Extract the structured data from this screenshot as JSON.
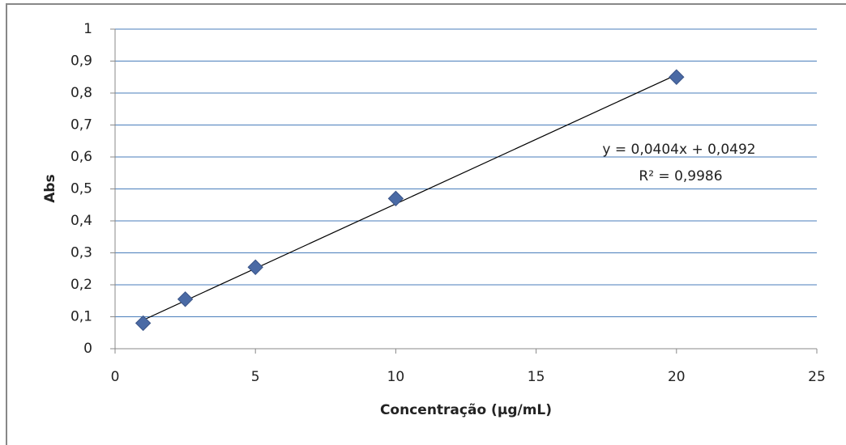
{
  "chart_data": {
    "type": "scatter",
    "x_label": "Concentração (µg/mL)",
    "y_label": "Abs",
    "series": [
      {
        "x": [
          1,
          2.5,
          5,
          10,
          20
        ],
        "values": [
          0.08,
          0.155,
          0.255,
          0.47,
          0.85
        ],
        "color": "#4a6aa5"
      }
    ],
    "trendline": {
      "x": [
        1,
        20
      ],
      "values": [
        0.0896,
        0.8572
      ],
      "color": "#000000"
    },
    "annotations": [
      "y = 0,0404x + 0,0492",
      "R² = 0,9986"
    ],
    "xlim": [
      0,
      25
    ],
    "xticks": [
      0,
      5,
      10,
      15,
      20,
      25
    ],
    "ylim": [
      0,
      1
    ],
    "yticks": [
      0,
      {
        "value": 0.1,
        "label": "0,1"
      },
      {
        "value": 0.2,
        "label": "0,2"
      },
      {
        "value": 0.3,
        "label": "0,3"
      },
      {
        "value": 0.4,
        "label": "0,4"
      },
      {
        "value": 0.5,
        "label": "0,5"
      },
      {
        "value": 0.6,
        "label": "0,6"
      },
      {
        "value": 0.7,
        "label": "0,7"
      },
      {
        "value": 0.8,
        "label": "0,8"
      },
      {
        "value": 0.9,
        "label": "0,9"
      },
      1
    ],
    "grid": true,
    "grid_color": "#4a7ebb"
  }
}
